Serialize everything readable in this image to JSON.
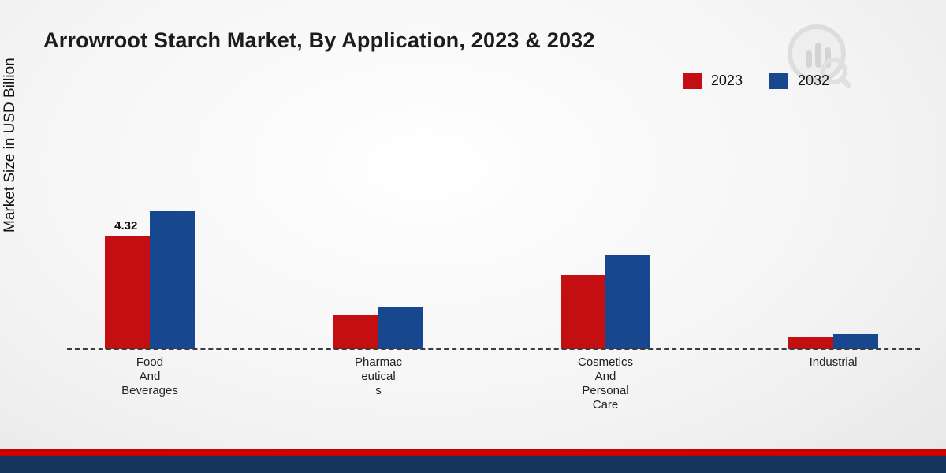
{
  "title": "Arrowroot Starch Market, By Application, 2023 & 2032",
  "ylabel": "Market Size in USD Billion",
  "colors": {
    "series_2023": "#c40f12",
    "series_2032": "#17478e",
    "footer_red": "#cc0000",
    "footer_navy": "#16365d",
    "baseline": "#3c3c3c"
  },
  "legend": {
    "position": "top-right",
    "items": [
      {
        "label": "2023",
        "color": "#c40f12"
      },
      {
        "label": "2032",
        "color": "#17478e"
      }
    ]
  },
  "chart_data": {
    "type": "bar",
    "title": "Arrowroot Starch Market, By Application, 2023 & 2032",
    "xlabel": "",
    "ylabel": "Market Size in USD Billion",
    "ylim": [
      0,
      6
    ],
    "grid": false,
    "legend_position": "top-right",
    "baseline_style": "dashed",
    "categories": [
      "Food And Beverages",
      "Pharmaceuticals",
      "Cosmetics And Personal Care",
      "Industrial"
    ],
    "category_label_lines": [
      [
        "Food",
        "And",
        "Beverages"
      ],
      [
        "Pharmac",
        "eutical",
        "s"
      ],
      [
        "Cosmetics",
        "And",
        "Personal",
        "Care"
      ],
      [
        "Industrial"
      ]
    ],
    "series": [
      {
        "name": "2023",
        "color": "#c40f12",
        "values": [
          4.32,
          1.3,
          2.85,
          0.45
        ]
      },
      {
        "name": "2032",
        "color": "#17478e",
        "values": [
          5.3,
          1.6,
          3.6,
          0.58
        ]
      }
    ],
    "data_labels": [
      {
        "series": "2023",
        "category": "Food And Beverages",
        "value": "4.32"
      }
    ]
  },
  "watermark": {
    "name": "brand-logo-watermark"
  }
}
